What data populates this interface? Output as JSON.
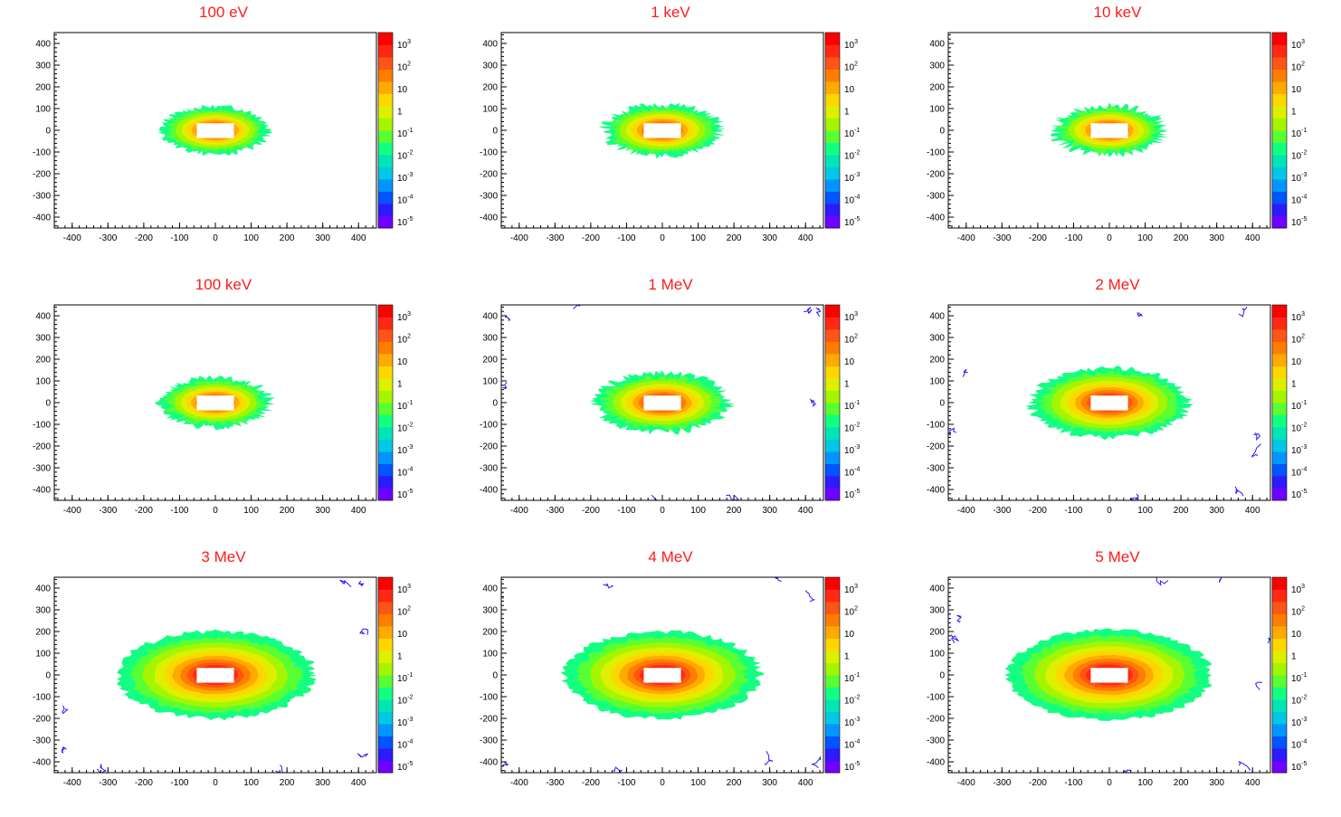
{
  "chart_data": [
    {
      "type": "heatmap",
      "title": "100 eV",
      "extent": 0.74,
      "jag": 0.1
    },
    {
      "type": "heatmap",
      "title": "1 keV",
      "extent": 0.8,
      "jag": 0.12
    },
    {
      "type": "heatmap",
      "title": "10 keV",
      "extent": 0.76,
      "jag": 0.14
    },
    {
      "type": "heatmap",
      "title": "100 keV",
      "extent": 0.76,
      "jag": 0.12
    },
    {
      "type": "heatmap",
      "title": "1 MeV",
      "extent": 0.92,
      "jag": 0.1
    },
    {
      "type": "heatmap",
      "title": "2 MeV",
      "extent": 1.08,
      "jag": 0.08
    },
    {
      "type": "heatmap",
      "title": "3 MeV",
      "extent": 1.35,
      "jag": 0.05
    },
    {
      "type": "heatmap",
      "title": "4 MeV",
      "extent": 1.35,
      "jag": 0.05
    },
    {
      "type": "heatmap",
      "title": "5 MeV",
      "extent": 1.4,
      "jag": 0.04
    }
  ],
  "axes": {
    "x_range": [
      -450,
      450
    ],
    "y_range": [
      -450,
      450
    ],
    "x_ticks": [
      "-400",
      "-300",
      "-200",
      "-100",
      "0",
      "100",
      "200",
      "300",
      "400"
    ],
    "y_ticks": [
      "400",
      "300",
      "200",
      "100",
      "0",
      "-100",
      "-200",
      "-300",
      "-400"
    ]
  },
  "colorbar": {
    "scale": "log",
    "range": [
      1e-05,
      3000.0
    ],
    "labels": [
      {
        "base": "10",
        "exp": "3"
      },
      {
        "base": "10",
        "exp": "2"
      },
      {
        "base": "10",
        "exp": ""
      },
      {
        "base": "1",
        "exp": ""
      },
      {
        "base": "10",
        "exp": "-1"
      },
      {
        "base": "10",
        "exp": "-2"
      },
      {
        "base": "10",
        "exp": "-3"
      },
      {
        "base": "10",
        "exp": "-4"
      },
      {
        "base": "10",
        "exp": "-5"
      }
    ]
  },
  "palette": [
    "#7000ff",
    "#2d1aff",
    "#0055ff",
    "#0096ff",
    "#00c8e6",
    "#00e6b4",
    "#14ff82",
    "#5aff32",
    "#a5f500",
    "#dcf000",
    "#ffd700",
    "#ffaa00",
    "#ff7d00",
    "#ff5514",
    "#ff2814",
    "#ff0000"
  ],
  "hole_color": "#ffffff"
}
